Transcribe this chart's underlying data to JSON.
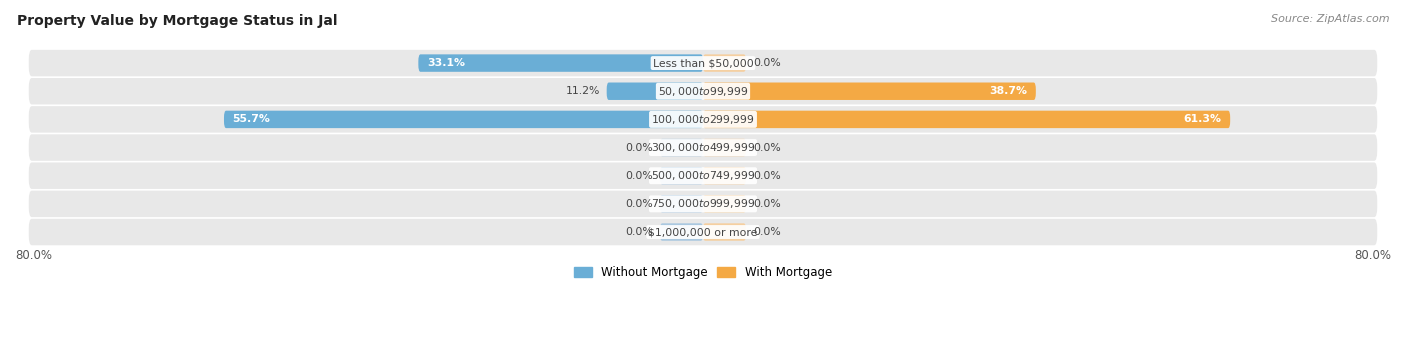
{
  "title": "Property Value by Mortgage Status in Jal",
  "source": "Source: ZipAtlas.com",
  "categories": [
    "Less than $50,000",
    "$50,000 to $99,999",
    "$100,000 to $299,999",
    "$300,000 to $499,999",
    "$500,000 to $749,999",
    "$750,000 to $999,999",
    "$1,000,000 or more"
  ],
  "without_mortgage": [
    33.1,
    11.2,
    55.7,
    0.0,
    0.0,
    0.0,
    0.0
  ],
  "with_mortgage": [
    0.0,
    38.7,
    61.3,
    0.0,
    0.0,
    0.0,
    0.0
  ],
  "color_without": "#6aaed6",
  "color_with": "#f4a944",
  "color_without_zero": "#aac8e0",
  "color_with_zero": "#f5cfa0",
  "axis_limit": 80.0,
  "axis_label_left": "80.0%",
  "axis_label_right": "80.0%",
  "legend_without": "Without Mortgage",
  "legend_with": "With Mortgage",
  "title_fontsize": 10,
  "source_fontsize": 8,
  "bar_height": 0.62,
  "zero_stub": 5.0,
  "row_bg_color": "#e8e8e8"
}
